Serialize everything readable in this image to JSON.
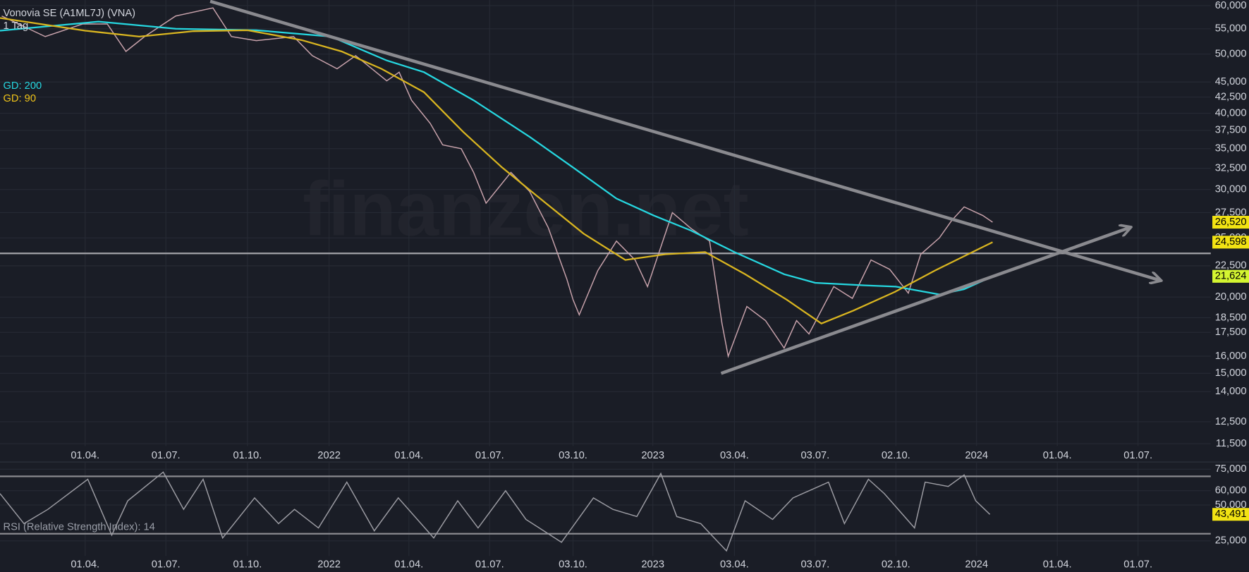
{
  "chart_data": [
    {
      "type": "line",
      "title": "Vonovia SE (A1ML7J) (VNA)",
      "subtitle": "1 Tag",
      "watermark": "finanzen.net",
      "log_scale": true,
      "grid": true,
      "xlim": [
        "2020-12-26",
        "2024-09-21"
      ],
      "ylim": [
        11400,
        61300
      ],
      "xticks": [
        {
          "value": "2021-04-01",
          "label": "01.04."
        },
        {
          "value": "2021-07-01",
          "label": "01.07."
        },
        {
          "value": "2021-10-01",
          "label": "01.10."
        },
        {
          "value": "2022-01-01",
          "label": "2022"
        },
        {
          "value": "2022-04-01",
          "label": "01.04."
        },
        {
          "value": "2022-07-01",
          "label": "01.07."
        },
        {
          "value": "2022-10-03",
          "label": "03.10."
        },
        {
          "value": "2023-01-01",
          "label": "2023"
        },
        {
          "value": "2023-04-03",
          "label": "03.04."
        },
        {
          "value": "2023-07-03",
          "label": "03.07."
        },
        {
          "value": "2023-10-02",
          "label": "02.10."
        },
        {
          "value": "2024-01-01",
          "label": "2024"
        },
        {
          "value": "2024-04-01",
          "label": "01.04."
        },
        {
          "value": "2024-07-01",
          "label": "01.07."
        }
      ],
      "yticks": [
        {
          "value": 60000,
          "label": "60,000"
        },
        {
          "value": 55000,
          "label": "55,000"
        },
        {
          "value": 50000,
          "label": "50,000"
        },
        {
          "value": 45000,
          "label": "45,000"
        },
        {
          "value": 42500,
          "label": "42,500"
        },
        {
          "value": 40000,
          "label": "40,000"
        },
        {
          "value": 37500,
          "label": "37,500"
        },
        {
          "value": 35000,
          "label": "35,000"
        },
        {
          "value": 32500,
          "label": "32,500"
        },
        {
          "value": 30000,
          "label": "30,000"
        },
        {
          "value": 27500,
          "label": "27,500"
        },
        {
          "value": 25000,
          "label": "25,000"
        },
        {
          "value": 22500,
          "label": "22,500"
        },
        {
          "value": 20000,
          "label": "20,000"
        },
        {
          "value": 18500,
          "label": "18,500"
        },
        {
          "value": 17500,
          "label": "17,500"
        },
        {
          "value": 16000,
          "label": "16,000"
        },
        {
          "value": 15000,
          "label": "15,000"
        },
        {
          "value": 14000,
          "label": "14,000"
        },
        {
          "value": 12500,
          "label": "12,500"
        },
        {
          "value": 11500,
          "label": "11,500"
        }
      ],
      "series": [
        {
          "color": "#c9a3ac",
          "label_color": "#f2e313",
          "x": [
            "2020-12-28",
            "2021-02-15",
            "2021-03-29",
            "2021-04-26",
            "2021-05-17",
            "2021-06-07",
            "2021-07-12",
            "2021-08-23",
            "2021-09-13",
            "2021-10-11",
            "2021-11-22",
            "2021-12-13",
            "2022-01-10",
            "2022-01-31",
            "2022-03-07",
            "2022-03-21",
            "2022-04-04",
            "2022-04-25",
            "2022-05-09",
            "2022-05-30",
            "2022-06-13",
            "2022-06-27",
            "2022-07-25",
            "2022-08-15",
            "2022-09-05",
            "2022-09-26",
            "2022-10-03",
            "2022-10-10",
            "2022-10-31",
            "2022-11-21",
            "2022-12-12",
            "2022-12-26",
            "2023-01-23",
            "2023-02-13",
            "2023-03-06",
            "2023-03-20",
            "2023-03-27",
            "2023-04-17",
            "2023-05-08",
            "2023-05-29",
            "2023-06-12",
            "2023-06-26",
            "2023-07-24",
            "2023-08-14",
            "2023-09-04",
            "2023-09-25",
            "2023-10-16",
            "2023-10-30",
            "2023-11-20",
            "2023-12-04",
            "2023-12-18",
            "2024-01-08",
            "2024-01-19"
          ],
          "values": [
            57700,
            53400,
            56000,
            56000,
            50500,
            53400,
            57700,
            59500,
            53400,
            52600,
            53400,
            49700,
            47300,
            49700,
            45200,
            46700,
            42000,
            38500,
            35500,
            35000,
            32000,
            28500,
            32000,
            29800,
            26000,
            21400,
            19800,
            18700,
            22100,
            24700,
            23000,
            20800,
            27500,
            25900,
            24700,
            18100,
            16000,
            19300,
            18300,
            16500,
            18300,
            17400,
            20800,
            19900,
            23000,
            22200,
            20300,
            23500,
            25000,
            26700,
            28100,
            27200,
            26520
          ],
          "value_labels": [
            null,
            null,
            null,
            null,
            null,
            null,
            null,
            null,
            null,
            null,
            null,
            null,
            null,
            null,
            null,
            null,
            null,
            null,
            null,
            null,
            null,
            null,
            null,
            null,
            null,
            null,
            null,
            null,
            null,
            null,
            null,
            null,
            null,
            null,
            null,
            null,
            null,
            null,
            null,
            null,
            null,
            null,
            null,
            null,
            null,
            null,
            null,
            null,
            null,
            null,
            null,
            null,
            "26,520"
          ]
        },
        {
          "name": "GD: 200",
          "color": "#26d7e0",
          "label_color": "#d4f531",
          "x": [
            "2020-12-26",
            "2021-04-16",
            "2021-07-12",
            "2021-10-11",
            "2022-01-03",
            "2022-03-07",
            "2022-04-18",
            "2022-06-13",
            "2022-08-15",
            "2022-10-03",
            "2022-11-21",
            "2023-01-02",
            "2023-02-13",
            "2023-04-03",
            "2023-05-29",
            "2023-07-03",
            "2023-08-28",
            "2023-10-02",
            "2023-11-20",
            "2023-12-18",
            "2024-01-19"
          ],
          "values": [
            54600,
            56500,
            55000,
            54700,
            53400,
            48800,
            46700,
            42000,
            36600,
            32600,
            29000,
            27200,
            25700,
            23700,
            21800,
            21100,
            20900,
            20800,
            20200,
            20600,
            21624
          ],
          "value_labels": [
            null,
            null,
            null,
            null,
            null,
            null,
            null,
            null,
            null,
            null,
            null,
            null,
            null,
            null,
            null,
            null,
            null,
            null,
            null,
            null,
            "21,624"
          ]
        },
        {
          "name": "GD: 90",
          "color": "#d9b520",
          "label_color": "#f2e313",
          "x": [
            "2020-12-26",
            "2021-04-01",
            "2021-06-01",
            "2021-08-01",
            "2021-10-01",
            "2021-12-01",
            "2022-01-15",
            "2022-03-01",
            "2022-04-18",
            "2022-06-01",
            "2022-07-15",
            "2022-09-01",
            "2022-10-15",
            "2022-12-01",
            "2023-01-15",
            "2023-03-01",
            "2023-04-15",
            "2023-06-01",
            "2023-07-10",
            "2023-08-15",
            "2023-10-01",
            "2023-11-15",
            "2024-01-19"
          ],
          "values": [
            57300,
            54600,
            53400,
            54500,
            54700,
            52700,
            50500,
            47300,
            43300,
            37300,
            32600,
            28600,
            25400,
            23000,
            23500,
            23700,
            21800,
            19800,
            18100,
            19000,
            20400,
            22100,
            24598
          ],
          "value_labels": [
            null,
            null,
            null,
            null,
            null,
            null,
            null,
            null,
            null,
            null,
            null,
            null,
            null,
            null,
            null,
            null,
            null,
            null,
            null,
            null,
            null,
            null,
            "24,598"
          ]
        }
      ],
      "hlines": [
        {
          "value": 23580,
          "color": "#a3a3a8"
        }
      ],
      "trendlines": [
        {
          "x": [
            "2021-08-20",
            "2024-07-26"
          ],
          "values": [
            61000,
            21300
          ],
          "color": "#8a8a8f"
        },
        {
          "x": [
            "2023-03-19",
            "2024-06-22"
          ],
          "values": [
            15000,
            26000
          ],
          "color": "#8a8a8f"
        }
      ]
    },
    {
      "type": "line",
      "title": "RSI (Relative Strength Index): 14",
      "log_scale": false,
      "grid": true,
      "xlim": [
        "2020-12-26",
        "2024-09-21"
      ],
      "ylim": [
        14.4,
        80
      ],
      "xticks": [
        {
          "value": "2021-04-01",
          "label": "01.04."
        },
        {
          "value": "2021-07-01",
          "label": "01.07."
        },
        {
          "value": "2021-10-01",
          "label": "01.10."
        },
        {
          "value": "2022-01-01",
          "label": "2022"
        },
        {
          "value": "2022-04-01",
          "label": "01.04."
        },
        {
          "value": "2022-07-01",
          "label": "01.07."
        },
        {
          "value": "2022-10-03",
          "label": "03.10."
        },
        {
          "value": "2023-01-01",
          "label": "2023"
        },
        {
          "value": "2023-04-03",
          "label": "03.04."
        },
        {
          "value": "2023-07-03",
          "label": "03.07."
        },
        {
          "value": "2023-10-02",
          "label": "02.10."
        },
        {
          "value": "2024-01-01",
          "label": "2024"
        },
        {
          "value": "2024-04-01",
          "label": "01.04."
        },
        {
          "value": "2024-07-01",
          "label": "01.07."
        }
      ],
      "yticks": [
        {
          "value": 75,
          "label": "75,000"
        },
        {
          "value": 60,
          "label": "60,000"
        },
        {
          "value": 50,
          "label": "50,000"
        },
        {
          "value": 25,
          "label": "25,000"
        }
      ],
      "series": [
        {
          "color": "#9c9ca3",
          "label_color": "#f2e313",
          "x": [
            "2020-12-26",
            "2021-01-22",
            "2021-02-18",
            "2021-04-04",
            "2021-05-01",
            "2021-05-19",
            "2021-06-28",
            "2021-07-21",
            "2021-08-12",
            "2021-09-03",
            "2021-10-09",
            "2021-11-05",
            "2021-11-23",
            "2021-12-20",
            "2022-01-21",
            "2022-02-21",
            "2022-03-20",
            "2022-04-29",
            "2022-05-26",
            "2022-06-18",
            "2022-07-19",
            "2022-08-11",
            "2022-09-20",
            "2022-10-26",
            "2022-11-17",
            "2022-12-14",
            "2023-01-10",
            "2023-01-28",
            "2023-02-24",
            "2023-03-25",
            "2023-04-15",
            "2023-05-16",
            "2023-06-08",
            "2023-07-18",
            "2023-08-05",
            "2023-09-01",
            "2023-09-19",
            "2023-10-23",
            "2023-11-04",
            "2023-11-30",
            "2023-12-18",
            "2023-12-31",
            "2024-01-16"
          ],
          "values": [
            58,
            37,
            47,
            68,
            29,
            53,
            73,
            47,
            68,
            27,
            55,
            37,
            47,
            34,
            66,
            32,
            55,
            27,
            53,
            34,
            60,
            40,
            24,
            55,
            47,
            42,
            72,
            42,
            37,
            18,
            53,
            40,
            55,
            66,
            37,
            68,
            58,
            34,
            66,
            63,
            71,
            53,
            43.491
          ],
          "value_labels": [
            null,
            null,
            null,
            null,
            null,
            null,
            null,
            null,
            null,
            null,
            null,
            null,
            null,
            null,
            null,
            null,
            null,
            null,
            null,
            null,
            null,
            null,
            null,
            null,
            null,
            null,
            null,
            null,
            null,
            null,
            null,
            null,
            null,
            null,
            null,
            null,
            null,
            null,
            null,
            null,
            null,
            null,
            "43,491"
          ]
        }
      ],
      "hlines": [
        {
          "value": 70,
          "color": "#8a8a8f"
        },
        {
          "value": 30,
          "color": "#8a8a8f"
        }
      ]
    }
  ]
}
